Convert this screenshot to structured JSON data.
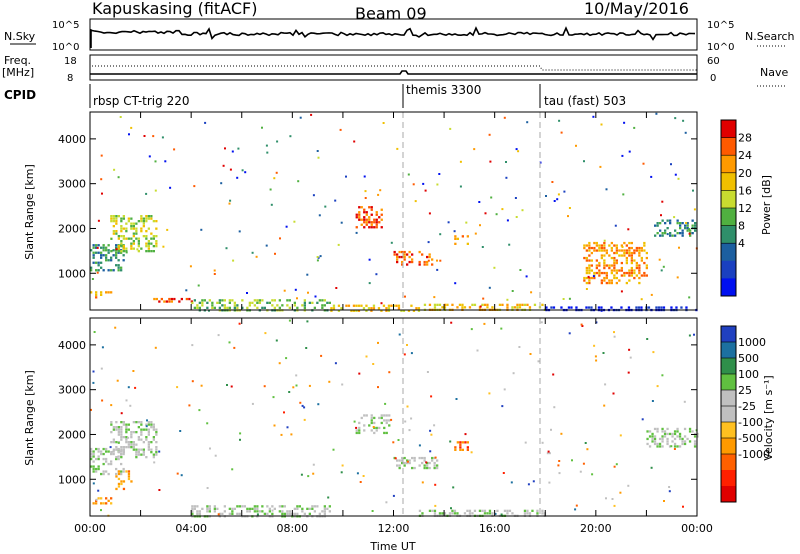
{
  "header": {
    "station": "Kapuskasing (fitACF)",
    "beam": "Beam 09",
    "date": "10/May/2016"
  },
  "strip_panels": {
    "nsky_label": "N.Sky",
    "nsky_ticks": [
      "10^5",
      "10^0"
    ],
    "nsearch_label": "N.Search",
    "nsearch_ticks": [
      "10^5",
      "10^0"
    ],
    "freq_label_1": "Freq.",
    "freq_label_2": "[MHz]",
    "freq_ticks": [
      "18",
      "8"
    ],
    "nave_label": "Nave",
    "nave_ticks": [
      "60",
      "0"
    ],
    "cpid_label": "CPID",
    "programs": [
      {
        "name": "rbsp CT-trig 220",
        "start_hour": 0.0
      },
      {
        "name": "themis 3300",
        "start_hour": 12.5
      },
      {
        "name": "tau (fast) 503",
        "start_hour": 18.0
      }
    ]
  },
  "chart_data": [
    {
      "type": "heatmap",
      "panel": "power",
      "xlabel": "",
      "ylabel": "Slant Range [km]",
      "x_range_hours": [
        0,
        24
      ],
      "ylim": [
        180,
        4600
      ],
      "yticks": [
        1000,
        2000,
        3000,
        4000
      ],
      "colorbar": {
        "label": "Power [dB]",
        "ticks": [
          "28",
          "24",
          "20",
          "16",
          "12",
          "8",
          "4"
        ],
        "colors": [
          "#e00000",
          "#ff5a00",
          "#ff9a00",
          "#f0c000",
          "#c8dc30",
          "#50b040",
          "#2f8f6a",
          "#1c5fa0",
          "#1a40c0",
          "#0010f0"
        ]
      },
      "patches": [
        {
          "t0": 0.0,
          "t1": 1.3,
          "r0": 1050,
          "r1": 1650,
          "level": 6
        },
        {
          "t0": 0.8,
          "t1": 2.6,
          "r0": 1500,
          "r1": 2300,
          "level": 4
        },
        {
          "t0": 0.0,
          "t1": 0.8,
          "r0": 450,
          "r1": 600,
          "level": 2
        },
        {
          "t0": 2.5,
          "t1": 4.0,
          "r0": 350,
          "r1": 450,
          "level": 1
        },
        {
          "t0": 4.0,
          "t1": 9.5,
          "r0": 180,
          "r1": 420,
          "level": 5
        },
        {
          "t0": 9.5,
          "t1": 13.0,
          "r0": 180,
          "r1": 300,
          "level": 3
        },
        {
          "t0": 13.0,
          "t1": 18.0,
          "r0": 180,
          "r1": 320,
          "level": 3
        },
        {
          "t0": 10.5,
          "t1": 11.5,
          "r0": 2000,
          "r1": 2500,
          "level": 1
        },
        {
          "t0": 12.0,
          "t1": 13.5,
          "r0": 1200,
          "r1": 1500,
          "level": 1
        },
        {
          "t0": 14.4,
          "t1": 14.9,
          "r0": 1650,
          "r1": 1850,
          "level": 2
        },
        {
          "t0": 18.0,
          "t1": 24.0,
          "r0": 180,
          "r1": 260,
          "level": 9
        },
        {
          "t0": 22.3,
          "t1": 23.9,
          "r0": 1850,
          "r1": 2200,
          "level": 6
        },
        {
          "t0": 19.5,
          "t1": 22.0,
          "r0": 800,
          "r1": 1700,
          "level": 2
        }
      ]
    },
    {
      "type": "heatmap",
      "panel": "velocity",
      "xlabel": "Time UT",
      "ylabel": "Slant Range [km]",
      "x_range_hours": [
        0,
        24
      ],
      "xticks": [
        "00:00",
        "04:00",
        "08:00",
        "12:00",
        "16:00",
        "20:00",
        "00:00"
      ],
      "ylim": [
        180,
        4600
      ],
      "yticks": [
        1000,
        2000,
        3000,
        4000
      ],
      "colorbar": {
        "label": "Velocity [m s⁻¹]",
        "ticks": [
          "1000",
          "500",
          "100",
          "25",
          "-25",
          "-100",
          "-500",
          "-1000"
        ],
        "colors": [
          "#2040c0",
          "#1c70a0",
          "#2f8f4a",
          "#60c040",
          "#c0c0c0",
          "#c0c0c0",
          "#ffc020",
          "#ff9a00",
          "#ff6000",
          "#ff2000",
          "#e00000"
        ]
      },
      "patches": [
        {
          "t0": 0.0,
          "t1": 1.3,
          "r0": 1100,
          "r1": 1700,
          "level": 4
        },
        {
          "t0": 0.8,
          "t1": 2.6,
          "r0": 1500,
          "r1": 2300,
          "level": 4
        },
        {
          "t0": 1.0,
          "t1": 1.6,
          "r0": 800,
          "r1": 1200,
          "level": 7
        },
        {
          "t0": 0.0,
          "t1": 0.8,
          "r0": 450,
          "r1": 600,
          "level": 7
        },
        {
          "t0": 4.0,
          "t1": 9.5,
          "r0": 180,
          "r1": 420,
          "level": 4
        },
        {
          "t0": 10.5,
          "t1": 11.8,
          "r0": 2050,
          "r1": 2450,
          "level": 4
        },
        {
          "t0": 12.0,
          "t1": 13.8,
          "r0": 1250,
          "r1": 1500,
          "level": 4
        },
        {
          "t0": 14.4,
          "t1": 14.9,
          "r0": 1650,
          "r1": 1850,
          "level": 8
        },
        {
          "t0": 22.0,
          "t1": 24.0,
          "r0": 1750,
          "r1": 2150,
          "level": 4
        },
        {
          "t0": 13.0,
          "t1": 18.0,
          "r0": 180,
          "r1": 320,
          "level": 4
        }
      ]
    }
  ]
}
